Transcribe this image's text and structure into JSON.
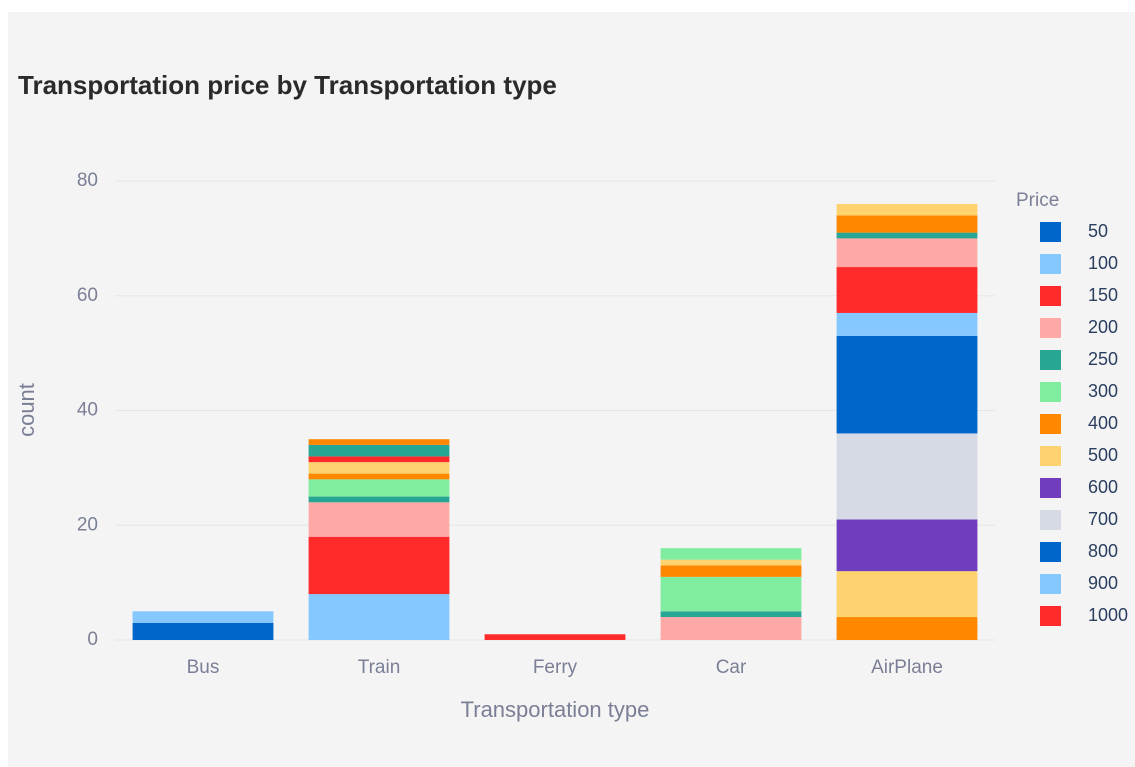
{
  "chart_data": {
    "type": "bar",
    "stacked": true,
    "title": "Transportation price by Transportation type",
    "x_label": "Transportation type",
    "y_label": "count",
    "legend_title": "Price",
    "legend": "right",
    "grid": true,
    "categories": [
      "Bus",
      "Train",
      "Ferry",
      "Car",
      "AirPlane"
    ],
    "ylim": [
      0,
      80
    ],
    "yticks": [
      0,
      20,
      40,
      60,
      80
    ],
    "series": [
      {
        "name": "50",
        "color": "#0066cc",
        "values": [
          3,
          0,
          0,
          0,
          0
        ]
      },
      {
        "name": "100",
        "color": "#85c7ff",
        "values": [
          2,
          8,
          0,
          0,
          0
        ]
      },
      {
        "name": "150",
        "color": "#ff2a2a",
        "values": [
          0,
          10,
          1,
          0,
          0
        ]
      },
      {
        "name": "200",
        "color": "#ffa8a8",
        "values": [
          0,
          6,
          0,
          4,
          0
        ]
      },
      {
        "name": "250",
        "color": "#28a694",
        "values": [
          0,
          1,
          0,
          1,
          0
        ]
      },
      {
        "name": "300",
        "color": "#80eca0",
        "values": [
          0,
          3,
          0,
          6,
          0
        ]
      },
      {
        "name": "400",
        "color": "#ff8800",
        "values": [
          0,
          1,
          0,
          2,
          4
        ]
      },
      {
        "name": "500",
        "color": "#ffd270",
        "values": [
          0,
          2,
          0,
          1,
          8
        ]
      },
      {
        "name": "600",
        "color": "#6f3dbe",
        "values": [
          0,
          0,
          0,
          0,
          9
        ]
      },
      {
        "name": "700",
        "color": "#d6dae5",
        "values": [
          0,
          0,
          0,
          0,
          15
        ]
      },
      {
        "name": "800",
        "color": "#0066cc",
        "values": [
          0,
          0,
          0,
          0,
          17
        ]
      },
      {
        "name": "900",
        "color": "#85c7ff",
        "values": [
          0,
          0,
          0,
          0,
          4
        ]
      },
      {
        "name": "1000",
        "color": "#ff2a2a",
        "values": [
          0,
          1,
          0,
          0,
          8
        ]
      },
      {
        "color": "#ffa8a8",
        "values": [
          0,
          0,
          0,
          0,
          5
        ]
      },
      {
        "color": "#28a694",
        "values": [
          0,
          2,
          0,
          0,
          1
        ]
      },
      {
        "color": "#80eca0",
        "values": [
          0,
          0,
          0,
          2,
          0
        ]
      },
      {
        "color": "#ff8800",
        "values": [
          0,
          1,
          0,
          0,
          3
        ]
      },
      {
        "color": "#ffd270",
        "values": [
          0,
          0,
          0,
          0,
          2
        ]
      }
    ]
  }
}
